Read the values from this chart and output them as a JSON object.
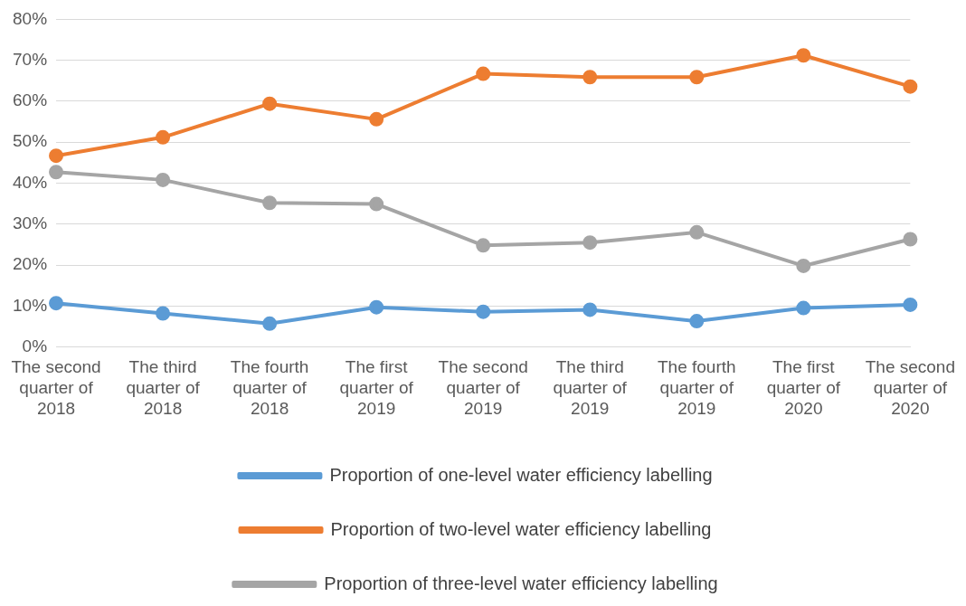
{
  "chart_data": {
    "type": "line",
    "categories": [
      "The second quarter of 2018",
      "The third quarter of 2018",
      "The fourth quarter of 2018",
      "The first quarter of 2019",
      "The second quarter of 2019",
      "The third quarter of 2019",
      "The fourth quarter of 2019",
      "The first quarter of 2020",
      "The second quarter of 2020"
    ],
    "series": [
      {
        "name": "Proportion of one-level water efficiency labelling",
        "color": "#5b9bd5",
        "values": [
          10.7,
          8.2,
          5.7,
          9.7,
          8.6,
          9.1,
          6.3,
          9.5,
          10.3
        ]
      },
      {
        "name": "Proportion of two-level water efficiency labelling",
        "color": "#ed7d31",
        "values": [
          46.7,
          51.2,
          59.4,
          55.6,
          66.7,
          65.9,
          65.9,
          71.2,
          63.6
        ]
      },
      {
        "name": "Proportion of three-level water efficiency labelling",
        "color": "#a5a5a5",
        "values": [
          42.7,
          40.8,
          35.2,
          34.9,
          24.8,
          25.5,
          28,
          19.8,
          26.3
        ]
      }
    ],
    "ylim": [
      0,
      80
    ],
    "yticks": [
      {
        "value": 0,
        "label": "0%"
      },
      {
        "value": 10,
        "label": "10%"
      },
      {
        "value": 20,
        "label": "20%"
      },
      {
        "value": 30,
        "label": "30%"
      },
      {
        "value": 40,
        "label": "40%"
      },
      {
        "value": 50,
        "label": "50%"
      },
      {
        "value": 60,
        "label": "60%"
      },
      {
        "value": 70,
        "label": "70%"
      },
      {
        "value": 80,
        "label": "80%"
      }
    ],
    "grid": "y",
    "legend": "bottom",
    "marker": "circle",
    "line_style": "solid"
  }
}
